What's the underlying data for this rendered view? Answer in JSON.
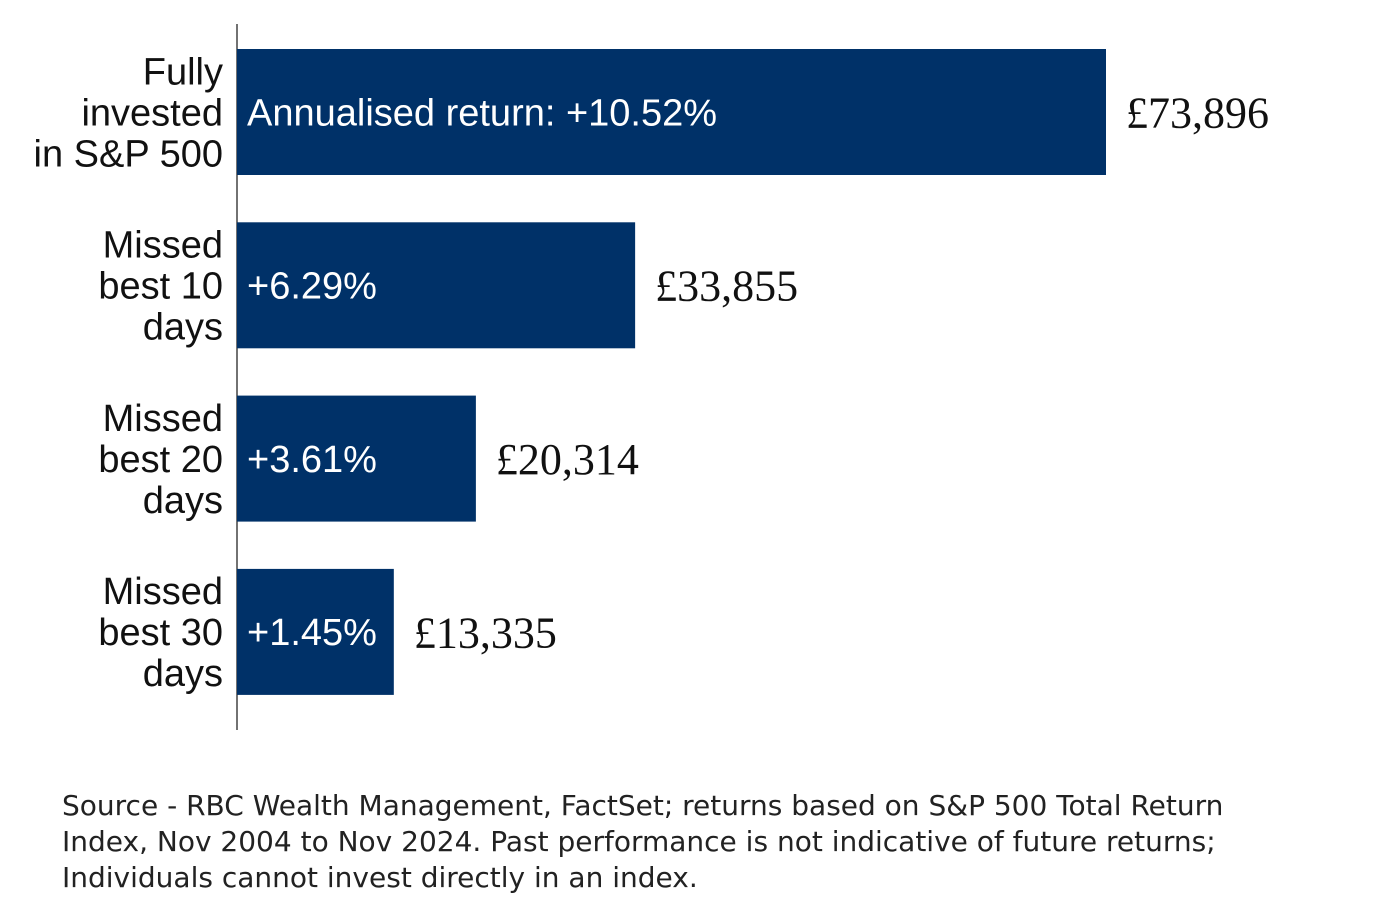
{
  "colors": {
    "bar": "#003168",
    "bar_text": "#ffffff",
    "value_text": "#111111",
    "label_text": "#111111",
    "axis": "#444444"
  },
  "chart_data": {
    "type": "bar",
    "orientation": "horizontal",
    "categories": [
      [
        "Fully",
        "invested",
        "in S&P 500"
      ],
      [
        "Missed",
        "best 10",
        "days"
      ],
      [
        "Missed",
        "best 20",
        "days"
      ],
      [
        "Missed",
        "best 30",
        "days"
      ]
    ],
    "values": [
      73896,
      33855,
      20314,
      13335
    ],
    "value_labels": [
      "£73,896",
      "£33,855",
      "£20,314",
      "£13,335"
    ],
    "return_labels": [
      "Annualised return: +10.52%",
      "+6.29%",
      "+3.61%",
      "+1.45%"
    ],
    "annualised_returns_pct": [
      10.52,
      6.29,
      3.61,
      1.45
    ],
    "xlim": [
      0,
      73896
    ],
    "grid": false,
    "legend": "none"
  },
  "footer": {
    "source": "Source - RBC Wealth Management, FactSet; returns based on S&P 500 Total Return Index, Nov 2004 to Nov 2024. Past performance is not indicative of future returns; Individuals cannot invest directly in an index."
  }
}
